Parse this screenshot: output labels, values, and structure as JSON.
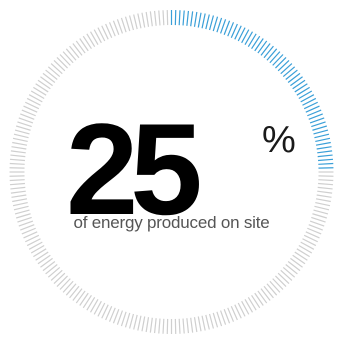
{
  "stat": {
    "value": "25",
    "unit": "%",
    "caption": "of energy produced on site",
    "fraction": 0.25
  },
  "colors": {
    "accent": "#3a9fd8",
    "track": "#cfcfcf",
    "text": "#000000",
    "caption_text": "#555555"
  }
}
